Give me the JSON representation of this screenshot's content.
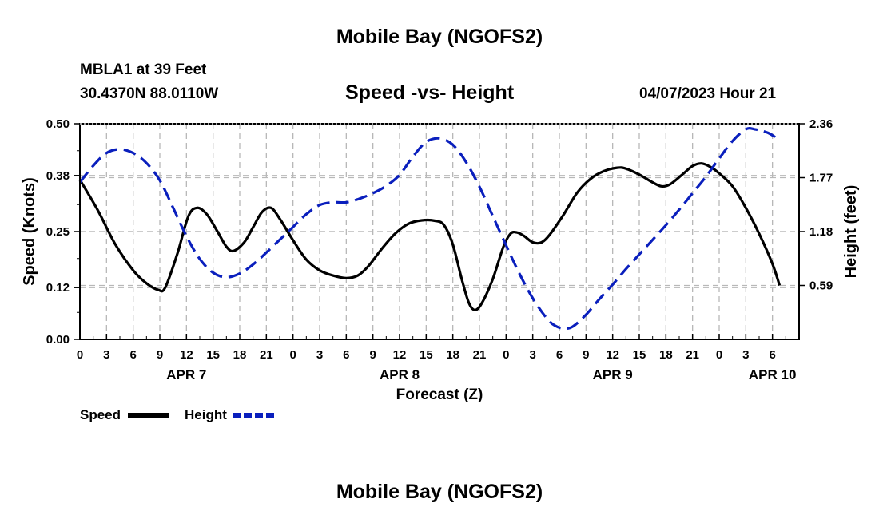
{
  "page": {
    "title": "Mobile Bay (NGOFS2)",
    "title_bottom": "Mobile Bay (NGOFS2)",
    "station_line": "MBLA1 at 39 Feet",
    "coords_line": "30.4370N  88.0110W",
    "subtitle": "Speed -vs- Height",
    "datetime": "04/07/2023 Hour 21"
  },
  "chart_data": {
    "type": "line",
    "title": "Speed -vs- Height",
    "xlabel": "Forecast (Z)",
    "ylabel_left": "Speed (Knots)",
    "ylabel_right": "Height (feet)",
    "x_range_hours": [
      0,
      81
    ],
    "x_ticks": [
      {
        "h": 0,
        "label": "0"
      },
      {
        "h": 3,
        "label": "3"
      },
      {
        "h": 6,
        "label": "6"
      },
      {
        "h": 9,
        "label": "9"
      },
      {
        "h": 12,
        "label": "12"
      },
      {
        "h": 15,
        "label": "15"
      },
      {
        "h": 18,
        "label": "18"
      },
      {
        "h": 21,
        "label": "21"
      },
      {
        "h": 24,
        "label": "0"
      },
      {
        "h": 27,
        "label": "3"
      },
      {
        "h": 30,
        "label": "6"
      },
      {
        "h": 33,
        "label": "9"
      },
      {
        "h": 36,
        "label": "12"
      },
      {
        "h": 39,
        "label": "15"
      },
      {
        "h": 42,
        "label": "18"
      },
      {
        "h": 45,
        "label": "21"
      },
      {
        "h": 48,
        "label": "0"
      },
      {
        "h": 51,
        "label": "3"
      },
      {
        "h": 54,
        "label": "6"
      },
      {
        "h": 57,
        "label": "9"
      },
      {
        "h": 60,
        "label": "12"
      },
      {
        "h": 63,
        "label": "15"
      },
      {
        "h": 66,
        "label": "18"
      },
      {
        "h": 69,
        "label": "21"
      },
      {
        "h": 72,
        "label": "0"
      },
      {
        "h": 75,
        "label": "3"
      },
      {
        "h": 78,
        "label": "6"
      }
    ],
    "date_labels": [
      {
        "h": 12,
        "label": "APR 7"
      },
      {
        "h": 36,
        "label": "APR 8"
      },
      {
        "h": 60,
        "label": "APR 9"
      },
      {
        "h": 78,
        "label": "APR 10"
      }
    ],
    "y_left": {
      "range": [
        0,
        0.5
      ],
      "ticks": [
        "0.00",
        "0.12",
        "0.25",
        "0.38",
        "0.50"
      ]
    },
    "y_right": {
      "range": [
        0,
        2.36
      ],
      "ticks": [
        "0.59",
        "1.18",
        "1.77",
        "2.36"
      ]
    },
    "grid": true,
    "legend_placement": "bottom-left",
    "series": [
      {
        "name": "Speed",
        "axis": "left",
        "color": "#000000",
        "dash": "solid",
        "points": [
          [
            0,
            0.37
          ],
          [
            2,
            0.3
          ],
          [
            4,
            0.22
          ],
          [
            6,
            0.16
          ],
          [
            7.5,
            0.13
          ],
          [
            8.8,
            0.115
          ],
          [
            9.6,
            0.12
          ],
          [
            11,
            0.2
          ],
          [
            12.2,
            0.285
          ],
          [
            13.2,
            0.305
          ],
          [
            14.3,
            0.29
          ],
          [
            15.5,
            0.25
          ],
          [
            16.5,
            0.215
          ],
          [
            17.3,
            0.205
          ],
          [
            18.5,
            0.225
          ],
          [
            19.5,
            0.26
          ],
          [
            20.5,
            0.295
          ],
          [
            21.5,
            0.305
          ],
          [
            22.5,
            0.28
          ],
          [
            24,
            0.23
          ],
          [
            25.5,
            0.185
          ],
          [
            27,
            0.16
          ],
          [
            28.5,
            0.148
          ],
          [
            30,
            0.142
          ],
          [
            31.3,
            0.148
          ],
          [
            32.5,
            0.17
          ],
          [
            34,
            0.21
          ],
          [
            35.5,
            0.245
          ],
          [
            37,
            0.268
          ],
          [
            38.5,
            0.276
          ],
          [
            40,
            0.275
          ],
          [
            41,
            0.265
          ],
          [
            42,
            0.22
          ],
          [
            43,
            0.14
          ],
          [
            43.8,
            0.085
          ],
          [
            44.5,
            0.068
          ],
          [
            45.3,
            0.085
          ],
          [
            46.5,
            0.14
          ],
          [
            47.7,
            0.215
          ],
          [
            48.5,
            0.245
          ],
          [
            49.2,
            0.248
          ],
          [
            50,
            0.24
          ],
          [
            51,
            0.225
          ],
          [
            52,
            0.225
          ],
          [
            53,
            0.245
          ],
          [
            54.5,
            0.29
          ],
          [
            56,
            0.34
          ],
          [
            57.5,
            0.372
          ],
          [
            59,
            0.39
          ],
          [
            60.5,
            0.398
          ],
          [
            61.5,
            0.396
          ],
          [
            63,
            0.382
          ],
          [
            64.5,
            0.364
          ],
          [
            65.5,
            0.355
          ],
          [
            66.5,
            0.36
          ],
          [
            68,
            0.385
          ],
          [
            69,
            0.402
          ],
          [
            70,
            0.408
          ],
          [
            71,
            0.4
          ],
          [
            72,
            0.385
          ],
          [
            73.5,
            0.355
          ],
          [
            75,
            0.305
          ],
          [
            76.5,
            0.245
          ],
          [
            78,
            0.175
          ],
          [
            78.8,
            0.125
          ]
        ]
      },
      {
        "name": "Height",
        "axis": "right",
        "color": "#0a1fbd",
        "dash": "dashed",
        "points": [
          [
            0,
            1.72
          ],
          [
            1.5,
            1.9
          ],
          [
            3,
            2.04
          ],
          [
            4.5,
            2.08
          ],
          [
            6,
            2.04
          ],
          [
            7.5,
            1.93
          ],
          [
            9,
            1.74
          ],
          [
            10.5,
            1.44
          ],
          [
            12,
            1.13
          ],
          [
            13.5,
            0.88
          ],
          [
            15,
            0.73
          ],
          [
            16.5,
            0.68
          ],
          [
            18,
            0.72
          ],
          [
            19.5,
            0.82
          ],
          [
            21,
            0.95
          ],
          [
            22.5,
            1.09
          ],
          [
            24,
            1.23
          ],
          [
            25.5,
            1.37
          ],
          [
            27,
            1.47
          ],
          [
            28.5,
            1.5
          ],
          [
            30,
            1.5
          ],
          [
            31.5,
            1.54
          ],
          [
            33,
            1.6
          ],
          [
            34.5,
            1.68
          ],
          [
            36,
            1.8
          ],
          [
            37.5,
            2.0
          ],
          [
            39,
            2.16
          ],
          [
            40.5,
            2.2
          ],
          [
            42,
            2.13
          ],
          [
            43.5,
            1.94
          ],
          [
            45,
            1.67
          ],
          [
            46.5,
            1.35
          ],
          [
            48,
            1.03
          ],
          [
            49.5,
            0.72
          ],
          [
            51,
            0.45
          ],
          [
            52.5,
            0.24
          ],
          [
            53.5,
            0.15
          ],
          [
            54.5,
            0.12
          ],
          [
            55.5,
            0.14
          ],
          [
            57,
            0.27
          ],
          [
            58.5,
            0.44
          ],
          [
            60,
            0.6
          ],
          [
            61.5,
            0.77
          ],
          [
            63,
            0.93
          ],
          [
            64.5,
            1.09
          ],
          [
            66,
            1.25
          ],
          [
            67.5,
            1.42
          ],
          [
            69,
            1.6
          ],
          [
            70.5,
            1.78
          ],
          [
            72,
            1.98
          ],
          [
            73.5,
            2.17
          ],
          [
            75,
            2.3
          ],
          [
            76,
            2.3
          ],
          [
            77.5,
            2.26
          ],
          [
            78.8,
            2.18
          ]
        ]
      }
    ]
  },
  "legend": {
    "speed_label": "Speed",
    "height_label": "Height"
  }
}
